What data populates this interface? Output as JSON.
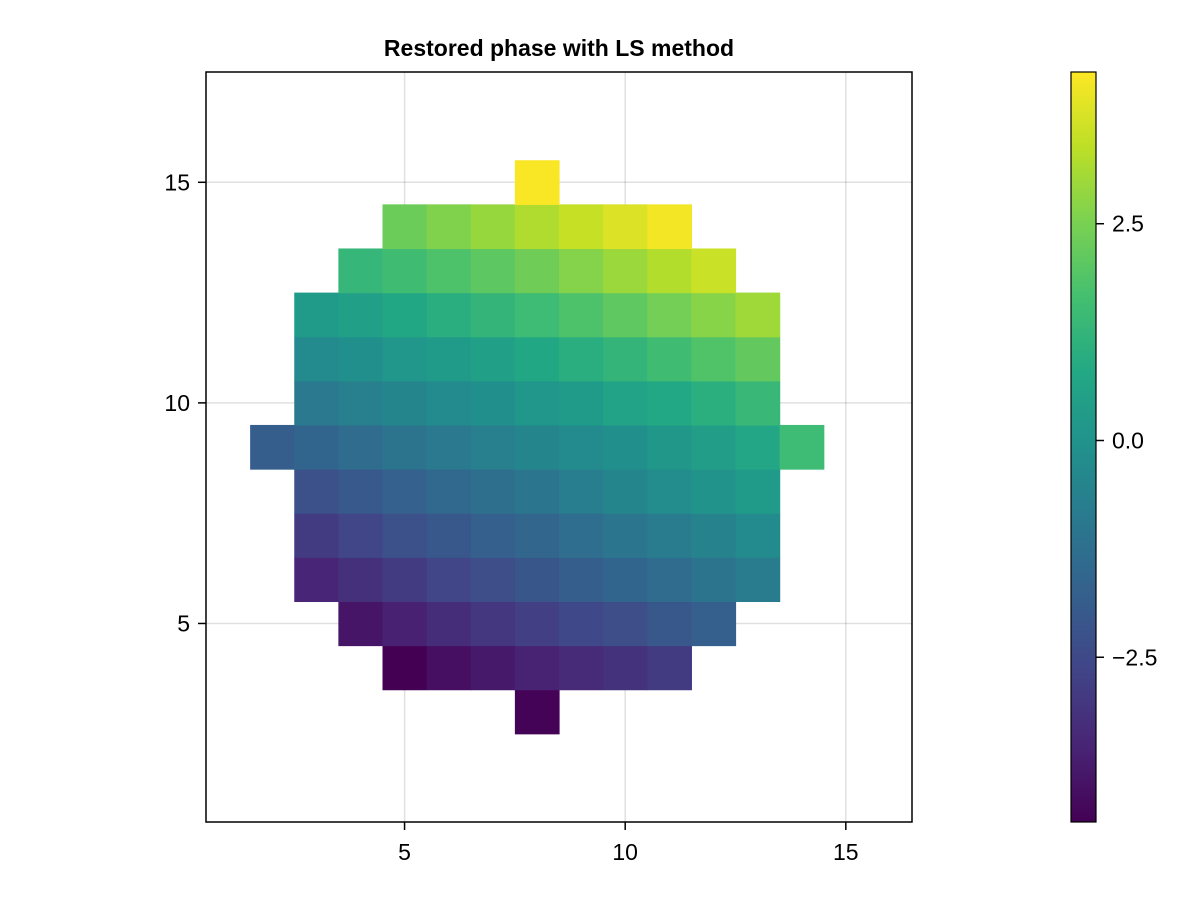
{
  "chart_data": {
    "type": "heatmap",
    "title": "Restored phase with LS method",
    "xlabel": "",
    "ylabel": "",
    "xlim": [
      0.5,
      16.5
    ],
    "ylim": [
      0.5,
      17.5
    ],
    "xticks": [
      5,
      10,
      15
    ],
    "yticks": [
      5,
      10,
      15
    ],
    "grid": true,
    "colormap": "viridis",
    "colorbar": {
      "range": [
        -4.4,
        4.25
      ],
      "ticks": [
        -2.5,
        0.0,
        2.5
      ],
      "tick_labels": [
        "−2.5",
        "0.0",
        "2.5"
      ],
      "placement": "right"
    },
    "cells": [
      {
        "y": 3,
        "x0": 8,
        "values": [
          -4.35
        ]
      },
      {
        "y": 4,
        "x0": 5,
        "values": [
          -4.4,
          -4.05,
          -3.8,
          -3.55,
          -3.35,
          -3.15,
          -2.9
        ]
      },
      {
        "y": 5,
        "x0": 4,
        "values": [
          -3.9,
          -3.6,
          -3.3,
          -3.05,
          -2.8,
          -2.55,
          -2.35,
          -2.05,
          -1.8
        ]
      },
      {
        "y": 6,
        "x0": 3,
        "values": [
          -3.5,
          -3.2,
          -2.9,
          -2.6,
          -2.35,
          -2.1,
          -1.85,
          -1.6,
          -1.35,
          -1.1,
          -0.85
        ]
      },
      {
        "y": 7,
        "x0": 3,
        "values": [
          -2.9,
          -2.6,
          -2.3,
          -2.05,
          -1.8,
          -1.55,
          -1.3,
          -1.05,
          -0.8,
          -0.55,
          -0.3
        ]
      },
      {
        "y": 8,
        "x0": 3,
        "values": [
          -2.3,
          -2.0,
          -1.75,
          -1.5,
          -1.25,
          -1.0,
          -0.75,
          -0.5,
          -0.25,
          0.0,
          0.3
        ]
      },
      {
        "y": 9,
        "x0": 2,
        "values": [
          -1.85,
          -1.6,
          -1.35,
          -1.1,
          -0.9,
          -0.7,
          -0.5,
          -0.3,
          -0.1,
          0.15,
          0.4,
          0.7,
          1.5
        ]
      },
      {
        "y": 10,
        "x0": 3,
        "values": [
          -0.9,
          -0.7,
          -0.5,
          -0.3,
          -0.1,
          0.1,
          0.3,
          0.55,
          0.8,
          1.05,
          1.35
        ]
      },
      {
        "y": 11,
        "x0": 3,
        "values": [
          -0.3,
          -0.1,
          0.1,
          0.3,
          0.5,
          0.75,
          1.0,
          1.25,
          1.55,
          1.85,
          2.15
        ]
      },
      {
        "y": 12,
        "x0": 3,
        "values": [
          0.3,
          0.5,
          0.75,
          1.0,
          1.25,
          1.5,
          1.8,
          2.1,
          2.4,
          2.7,
          3.0
        ]
      },
      {
        "y": 13,
        "x0": 4,
        "values": [
          1.3,
          1.55,
          1.8,
          2.05,
          2.35,
          2.65,
          2.95,
          3.25,
          3.55
        ]
      },
      {
        "y": 14,
        "x0": 5,
        "values": [
          2.3,
          2.6,
          2.9,
          3.2,
          3.5,
          3.8,
          4.1
        ]
      },
      {
        "y": 15,
        "x0": 8,
        "values": [
          4.2
        ]
      }
    ]
  }
}
